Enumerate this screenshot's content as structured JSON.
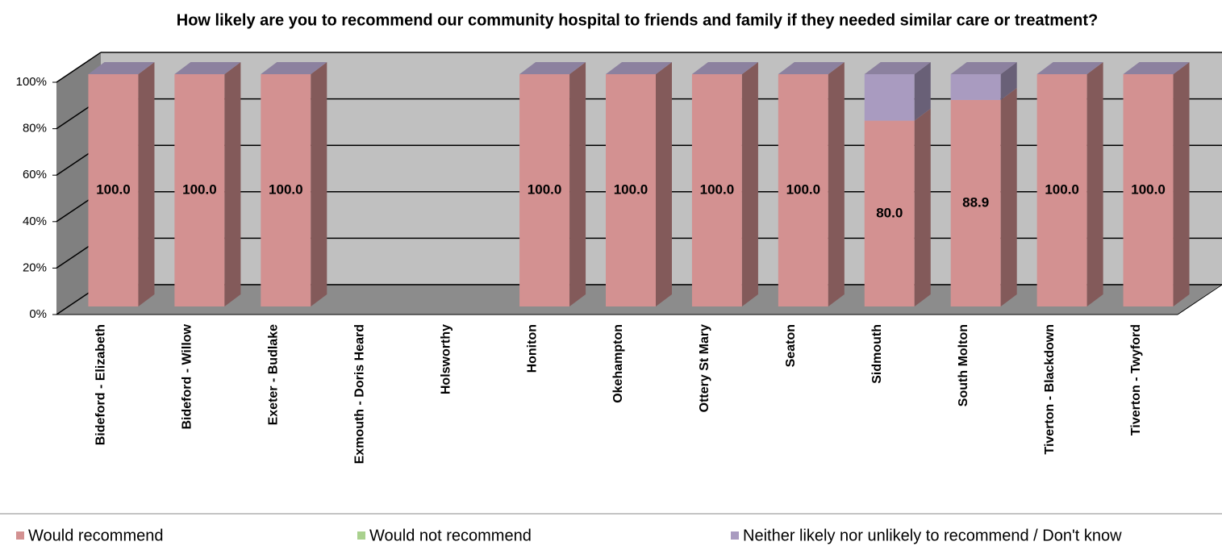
{
  "chart_data": {
    "type": "stacked-bar-3d",
    "title": "How likely are you to recommend our community hospital to friends and family if they needed similar care or treatment?",
    "categories": [
      "Bideford - Elizabeth",
      "Bideford - Willow",
      "Exeter - Budlake",
      "Exmouth - Doris Heard",
      "Holsworthy",
      "Honiton",
      "Okehampton",
      "Ottery St Mary",
      "Seaton",
      "Sidmouth",
      "South Molton",
      "Tiverton - Blackdown",
      "Tiverton - Twyford"
    ],
    "series": [
      {
        "name": "Would recommend",
        "color": "#d39191",
        "values": [
          100,
          100,
          100,
          null,
          null,
          100,
          100,
          100,
          100,
          80,
          88.9,
          100,
          100
        ],
        "value_labels": [
          "100.0",
          "100.0",
          "100.0",
          null,
          null,
          "100.0",
          "100.0",
          "100.0",
          "100.0",
          "80.0",
          "88.9",
          "100.0",
          "100.0"
        ]
      },
      {
        "name": "Would not recommend",
        "color": "#a9d18e",
        "values": [
          0,
          0,
          0,
          null,
          null,
          0,
          0,
          0,
          0,
          0,
          0,
          0,
          0
        ]
      },
      {
        "name": "Neither likely nor unlikely to recommend / Don't know",
        "color": "#a99bc0",
        "values": [
          0,
          0,
          0,
          null,
          null,
          0,
          0,
          0,
          0,
          20,
          11.1,
          0,
          0
        ]
      }
    ],
    "ylim": [
      0,
      100
    ],
    "yticks": [
      {
        "value": 0,
        "label": "0%"
      },
      {
        "value": 20,
        "label": "20%"
      },
      {
        "value": 40,
        "label": "40%"
      },
      {
        "value": 60,
        "label": "60%"
      },
      {
        "value": 80,
        "label": "80%"
      },
      {
        "value": 100,
        "label": "100%"
      }
    ],
    "grid": true,
    "legend": "bottom"
  }
}
